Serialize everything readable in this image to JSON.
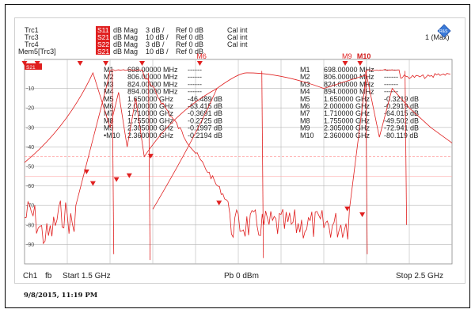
{
  "traces": [
    {
      "name": "Trc1",
      "param": "S11",
      "format": "dB Mag",
      "scale": "3 dB /",
      "ref": "Ref 0 dB",
      "cal": "Cal int"
    },
    {
      "name": "Trc3",
      "param": "S21",
      "format": "dB Mag",
      "scale": "10 dB /",
      "ref": "Ref 0 dB",
      "cal": "Cal int"
    },
    {
      "name": "Trc4",
      "param": "S22",
      "format": "dB Mag",
      "scale": "3 dB /",
      "ref": "Ref 0 dB",
      "cal": "Cal int"
    },
    {
      "name": "Mem5[Trc3]",
      "param": "S21",
      "format": "dB Mag",
      "scale": "10 dB /",
      "ref": "Ref 0 dB",
      "cal": ""
    }
  ],
  "max_indicator": "1 (Max)",
  "ref_badge": "S21",
  "logo": "R&S",
  "marker_table_left": [
    {
      "id": "M1",
      "freq": "698.00000 MHz",
      "val": "------"
    },
    {
      "id": "M2",
      "freq": "806.00000 MHz",
      "val": "------"
    },
    {
      "id": "M3",
      "freq": "824.00000 MHz",
      "val": "------"
    },
    {
      "id": "M4",
      "freq": "894.00000 MHz",
      "val": "------"
    },
    {
      "id": "M5",
      "freq": "1.650000 GHz",
      "val": "-46.489 dB"
    },
    {
      "id": "M6",
      "freq": "2.000000 GHz",
      "val": "-63.415 dB"
    },
    {
      "id": "M7",
      "freq": "1.710000 GHz",
      "val": "-0.3691 dB"
    },
    {
      "id": "M8",
      "freq": "1.755000 GHz",
      "val": "-0.2725 dB"
    },
    {
      "id": "M9",
      "freq": "2.305000 GHz",
      "val": "-0.1997 dB"
    },
    {
      "id": "•M10",
      "freq": "2.360000 GHz",
      "val": "-0.2194 dB"
    }
  ],
  "marker_table_right": [
    {
      "id": "M1",
      "freq": "698.00000 MHz",
      "val": "------"
    },
    {
      "id": "M2",
      "freq": "806.00000 MHz",
      "val": "------"
    },
    {
      "id": "M3",
      "freq": "824.00000 MHz",
      "val": "------"
    },
    {
      "id": "M4",
      "freq": "894.00000 MHz",
      "val": "------"
    },
    {
      "id": "M5",
      "freq": "1.650000 GHz",
      "val": "-0.3219 dB"
    },
    {
      "id": "M6",
      "freq": "2.000000 GHz",
      "val": "-0.2919 dB"
    },
    {
      "id": "M7",
      "freq": "1.710000 GHz",
      "val": "-64.015 dB"
    },
    {
      "id": "M8",
      "freq": "1.755000 GHz",
      "val": "-49.502 dB"
    },
    {
      "id": "M9",
      "freq": "2.305000 GHz",
      "val": "-72.941 dB"
    },
    {
      "id": "M10",
      "freq": "2.360000 GHz",
      "val": "-80.119 dB"
    }
  ],
  "y_ticks": [
    "-10",
    "-20",
    "-30",
    "-40",
    "-50",
    "-60",
    "-70",
    "-80",
    "-90"
  ],
  "markers_top": [
    "M5",
    "M6",
    "M9",
    "M10"
  ],
  "plot_markers": [
    "M5",
    "M6",
    "M7",
    "M8",
    "M9",
    "M10"
  ],
  "footer": {
    "channel": "Ch1",
    "fb": "fb",
    "start": "Start  1.5 GHz",
    "power": "Pb  0 dBm",
    "stop": "Stop  2.5 GHz"
  },
  "timestamp": "9/8/2015, 11:19 PM",
  "colors": {
    "trace": "#e02020",
    "badge": "#e02020",
    "grid": "#b8b8b8",
    "logo": "#3a7ad8"
  },
  "chart_data": {
    "type": "line",
    "x_range_ghz": [
      1.5,
      2.5
    ],
    "y_range_db": [
      0,
      -100
    ],
    "series": [
      {
        "name": "Trc3 S21",
        "x_ghz": [
          1.5,
          1.6,
          1.65,
          1.7,
          1.71,
          1.755,
          1.8,
          1.9,
          2.0,
          2.1,
          2.2,
          2.3,
          2.305,
          2.36,
          2.4,
          2.5
        ],
        "y_db": [
          -75,
          -68,
          -46.5,
          -10,
          -0.37,
          -0.27,
          -8,
          -50,
          -63.4,
          -72,
          -75,
          -10,
          -0.2,
          -0.22,
          -3,
          -1
        ]
      }
    ]
  }
}
